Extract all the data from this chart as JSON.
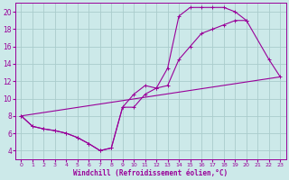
{
  "bg_color": "#cce9e9",
  "grid_color": "#aacccc",
  "line_color": "#990099",
  "xlabel": "Windchill (Refroidissement éolien,°C)",
  "xlim": [
    -0.5,
    23.5
  ],
  "ylim": [
    3.0,
    21.0
  ],
  "yticks": [
    4,
    6,
    8,
    10,
    12,
    14,
    16,
    18,
    20
  ],
  "xticks": [
    0,
    1,
    2,
    3,
    4,
    5,
    6,
    7,
    8,
    9,
    10,
    11,
    12,
    13,
    14,
    15,
    16,
    17,
    18,
    19,
    20,
    21,
    22,
    23
  ],
  "line1_x": [
    0,
    1,
    2,
    3,
    4,
    5,
    6,
    7,
    8,
    9,
    10,
    11,
    12,
    13,
    14,
    15,
    16,
    17,
    18,
    19,
    20,
    22,
    23
  ],
  "line1_y": [
    8.0,
    6.8,
    6.5,
    6.3,
    6.0,
    5.5,
    4.8,
    4.0,
    4.3,
    9.0,
    10.5,
    11.5,
    11.2,
    13.5,
    19.5,
    20.5,
    20.5,
    20.5,
    20.5,
    20.0,
    19.0,
    14.5,
    12.5
  ],
  "line2_x": [
    0,
    1,
    2,
    3,
    4,
    5,
    6,
    7,
    8,
    9,
    10,
    11,
    12,
    13,
    14,
    15,
    16,
    17,
    18,
    19,
    20
  ],
  "line2_y": [
    8.0,
    6.8,
    6.5,
    6.3,
    6.0,
    5.5,
    4.8,
    4.0,
    4.3,
    9.0,
    9.0,
    10.5,
    11.2,
    11.5,
    14.5,
    16.0,
    17.5,
    18.0,
    18.5,
    19.0,
    19.0
  ],
  "line3_x": [
    0,
    23
  ],
  "line3_y": [
    8.0,
    12.5
  ]
}
